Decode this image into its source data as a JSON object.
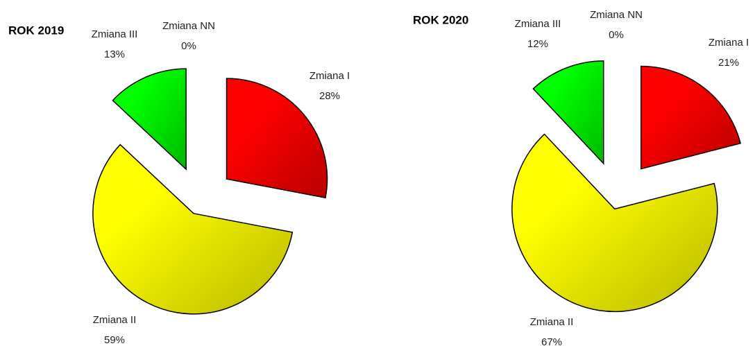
{
  "chart_data": [
    {
      "type": "pie",
      "title": "ROK 2019",
      "categories": [
        "Zmiana I",
        "Zmiana II",
        "Zmiana III",
        "Zmiana NN"
      ],
      "values": [
        28,
        59,
        13,
        0
      ],
      "value_labels": [
        "28%",
        "59%",
        "13%",
        "0%"
      ],
      "colors": [
        "#ff0000",
        "#ffff00",
        "#00ff00",
        "#4472c4"
      ]
    },
    {
      "type": "pie",
      "title": "ROK 2020",
      "categories": [
        "Zmiana I",
        "Zmiana II",
        "Zmiana III",
        "Zmiana NN"
      ],
      "values": [
        21,
        67,
        12,
        0
      ],
      "value_labels": [
        "21%",
        "67%",
        "12%",
        "0%"
      ],
      "colors": [
        "#ff0000",
        "#ffff00",
        "#00ff00",
        "#4472c4"
      ]
    }
  ]
}
